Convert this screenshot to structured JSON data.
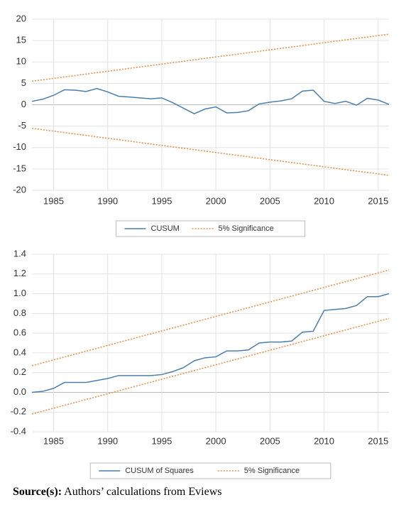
{
  "chart_data": [
    {
      "type": "line",
      "xlim": [
        1983,
        2016
      ],
      "xticks": [
        1985,
        1990,
        1995,
        2000,
        2005,
        2010,
        2015
      ],
      "ylim": [
        -20,
        20
      ],
      "yticks": [
        -20,
        -15,
        -10,
        -5,
        0,
        5,
        10,
        15,
        20
      ],
      "grid": true,
      "series": [
        {
          "name": "CUSUM",
          "color": "#4a7eab",
          "style": "solid",
          "x": [
            1983,
            1984,
            1985,
            1986,
            1987,
            1988,
            1989,
            1990,
            1991,
            1992,
            1993,
            1994,
            1995,
            1996,
            1997,
            1998,
            1999,
            2000,
            2001,
            2002,
            2003,
            2004,
            2005,
            2006,
            2007,
            2008,
            2009,
            2010,
            2011,
            2012,
            2013,
            2014,
            2015,
            2016
          ],
          "values": [
            0.8,
            1.3,
            2.2,
            3.5,
            3.4,
            3.1,
            3.8,
            3.0,
            2.0,
            1.8,
            1.6,
            1.4,
            1.6,
            0.5,
            -0.8,
            -2.1,
            -1.0,
            -0.5,
            -1.9,
            -1.8,
            -1.4,
            0.2,
            0.6,
            0.9,
            1.4,
            3.2,
            3.4,
            0.8,
            0.3,
            0.8,
            -0.1,
            1.5,
            1.1,
            0.1
          ]
        },
        {
          "name": "5% Significance",
          "color": "#e8914a",
          "style": "dotted",
          "x": [
            1983,
            2016
          ],
          "values": [
            5.5,
            16.5
          ]
        },
        {
          "color": "#e8914a",
          "style": "dotted",
          "x": [
            1983,
            2016
          ],
          "values": [
            -5.5,
            -16.5
          ]
        }
      ]
    },
    {
      "type": "line",
      "xlim": [
        1983,
        2016
      ],
      "xticks": [
        1985,
        1990,
        1995,
        2000,
        2005,
        2010,
        2015
      ],
      "ylim": [
        -0.4,
        1.4
      ],
      "yticks": [
        -0.4,
        -0.2,
        {
          "value": 0,
          "label": "0.0"
        },
        0.2,
        0.4,
        0.6,
        0.8,
        {
          "value": 1,
          "label": "1.0"
        },
        1.2,
        1.4
      ],
      "grid": true,
      "series": [
        {
          "name": "CUSUM of Squares",
          "color": "#4a7eab",
          "style": "solid",
          "x": [
            1983,
            1984,
            1985,
            1986,
            1987,
            1988,
            1989,
            1990,
            1991,
            1992,
            1993,
            1994,
            1995,
            1996,
            1997,
            1998,
            1999,
            2000,
            2001,
            2002,
            2003,
            2004,
            2005,
            2006,
            2007,
            2008,
            2009,
            2010,
            2011,
            2012,
            2013,
            2014,
            2015,
            2016
          ],
          "values": [
            0.0,
            0.01,
            0.04,
            0.1,
            0.1,
            0.1,
            0.12,
            0.14,
            0.17,
            0.17,
            0.17,
            0.17,
            0.18,
            0.21,
            0.25,
            0.32,
            0.35,
            0.36,
            0.42,
            0.42,
            0.43,
            0.5,
            0.51,
            0.51,
            0.52,
            0.61,
            0.62,
            0.83,
            0.84,
            0.85,
            0.88,
            0.97,
            0.97,
            1.0
          ]
        },
        {
          "name": "5% Significance",
          "color": "#e8914a",
          "style": "dotted",
          "x": [
            1983,
            2016
          ],
          "values": [
            0.27,
            1.24
          ]
        },
        {
          "color": "#e8914a",
          "style": "dotted",
          "x": [
            1983,
            2016
          ],
          "values": [
            -0.22,
            0.75
          ]
        }
      ]
    }
  ],
  "source": {
    "label": "Source(s):",
    "text": "Authors’ calculations from Eviews"
  }
}
